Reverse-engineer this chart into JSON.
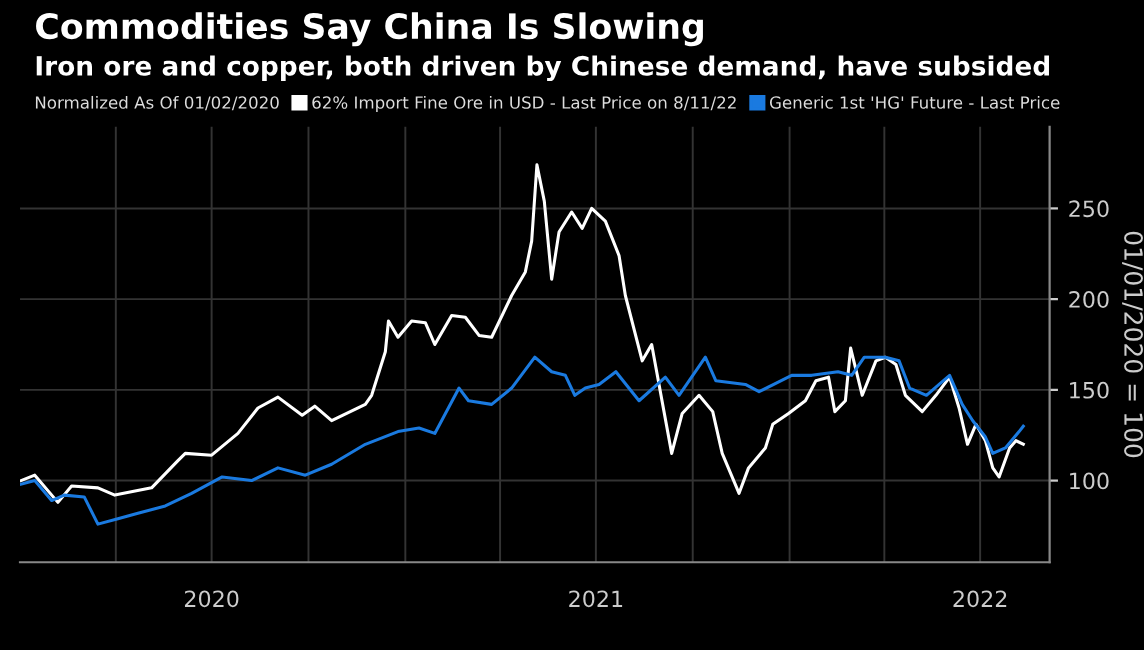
{
  "chart_data": {
    "type": "line",
    "title": "Commodities Say China Is Slowing",
    "subtitle": "Iron ore and copper, both driven by Chinese demand, have subsided",
    "legend_title": "Normalized As Of 01/02/2020",
    "ylabel": "01/01/2020 = 100",
    "series": [
      {
        "name": "62% Import Fine Ore in USD - Last Price on 8/11/22",
        "color": "#ffffff",
        "x": [
          "2020-01-02",
          "2020-01-15",
          "2020-02-06",
          "2020-02-19",
          "2020-03-15",
          "2020-03-31",
          "2020-05-05",
          "2020-05-30",
          "2020-06-06",
          "2020-07-01",
          "2020-07-26",
          "2020-08-14",
          "2020-09-02",
          "2020-09-25",
          "2020-10-07",
          "2020-10-23",
          "2020-11-24",
          "2020-11-30",
          "2020-12-13",
          "2020-12-16",
          "2020-12-25",
          "2021-01-07",
          "2021-01-20",
          "2021-01-29",
          "2021-02-14",
          "2021-02-27",
          "2021-03-12",
          "2021-03-24",
          "2021-04-12",
          "2021-04-25",
          "2021-05-01",
          "2021-05-06",
          "2021-05-13",
          "2021-05-20",
          "2021-05-27",
          "2021-06-08",
          "2021-06-18",
          "2021-06-27",
          "2021-07-10",
          "2021-07-23",
          "2021-07-29",
          "2021-08-14",
          "2021-08-23",
          "2021-09-11",
          "2021-09-21",
          "2021-10-07",
          "2021-10-20",
          "2021-10-29",
          "2021-11-14",
          "2021-11-23",
          "2021-12-09",
          "2021-12-16",
          "2021-12-31",
          "2022-01-16",
          "2022-01-26",
          "2022-02-07",
          "2022-02-13",
          "2022-02-23",
          "2022-02-28",
          "2022-03-11",
          "2022-03-24",
          "2022-04-02",
          "2022-04-12",
          "2022-04-21",
          "2022-05-07",
          "2022-05-20",
          "2022-06-02",
          "2022-06-11",
          "2022-06-19",
          "2022-06-27",
          "2022-07-06",
          "2022-07-13",
          "2022-07-19",
          "2022-07-29",
          "2022-08-04",
          "2022-08-11"
        ],
        "values": [
          100,
          103,
          88,
          97,
          96,
          92,
          96,
          111,
          115,
          114,
          126,
          140,
          146,
          136,
          141,
          133,
          142,
          147,
          171,
          188,
          179,
          188,
          187,
          175,
          191,
          190,
          180,
          179,
          202,
          215,
          232,
          274,
          254,
          211,
          237,
          248,
          239,
          250,
          243,
          224,
          202,
          166,
          175,
          115,
          137,
          147,
          138,
          115,
          93,
          107,
          118,
          131,
          137,
          144,
          155,
          157,
          138,
          144,
          173,
          147,
          166,
          168,
          164,
          147,
          138,
          147,
          157,
          140,
          120,
          131,
          122,
          107,
          102,
          118,
          122,
          120
        ]
      },
      {
        "name": "Generic 1st 'HG' Future - Last Price",
        "color": "#1a7ae0",
        "x": [
          "2020-01-02",
          "2020-01-15",
          "2020-01-31",
          "2020-02-12",
          "2020-03-02",
          "2020-03-15",
          "2020-04-03",
          "2020-04-22",
          "2020-05-18",
          "2020-06-12",
          "2020-07-11",
          "2020-08-08",
          "2020-09-02",
          "2020-09-28",
          "2020-10-23",
          "2020-11-24",
          "2020-12-25",
          "2021-01-14",
          "2021-01-29",
          "2021-02-21",
          "2021-03-02",
          "2021-03-24",
          "2021-04-12",
          "2021-05-04",
          "2021-05-20",
          "2021-06-02",
          "2021-06-11",
          "2021-06-21",
          "2021-07-04",
          "2021-07-20",
          "2021-08-11",
          "2021-09-05",
          "2021-09-18",
          "2021-10-13",
          "2021-10-23",
          "2021-11-20",
          "2021-12-03",
          "2022-01-03",
          "2022-01-22",
          "2022-02-16",
          "2022-03-01",
          "2022-03-13",
          "2022-04-02",
          "2022-04-15",
          "2022-04-25",
          "2022-05-11",
          "2022-05-23",
          "2022-06-02",
          "2022-06-14",
          "2022-06-24",
          "2022-07-06",
          "2022-07-13",
          "2022-07-25",
          "2022-08-07",
          "2022-08-11"
        ],
        "values": [
          98,
          100,
          89,
          92,
          91,
          76,
          79,
          82,
          86,
          93,
          102,
          100,
          107,
          103,
          109,
          120,
          127,
          129,
          126,
          151,
          144,
          142,
          151,
          168,
          160,
          158,
          147,
          151,
          153,
          160,
          144,
          157,
          147,
          168,
          155,
          153,
          149,
          158,
          158,
          160,
          158,
          168,
          168,
          166,
          151,
          147,
          153,
          158,
          142,
          133,
          124,
          115,
          118,
          127,
          130
        ]
      }
    ],
    "xlim": [
      "2020-01-01",
      "2022-09-05"
    ],
    "xticks": [
      {
        "value": "2020-04-01",
        "label": null
      },
      {
        "value": "2020-07-01",
        "label": "2020"
      },
      {
        "value": "2020-10-01",
        "label": null
      },
      {
        "value": "2021-01-01",
        "label": null
      },
      {
        "value": "2021-04-01",
        "label": null
      },
      {
        "value": "2021-07-01",
        "label": "2021"
      },
      {
        "value": "2021-10-01",
        "label": null
      },
      {
        "value": "2022-01-01",
        "label": null
      },
      {
        "value": "2022-04-01",
        "label": null
      },
      {
        "value": "2022-07-01",
        "label": "2022"
      }
    ],
    "ylim": [
      55,
      295
    ],
    "yticks": [
      100,
      150,
      200,
      250
    ],
    "grid": true,
    "legend": "top",
    "marker": "none",
    "line_style": "solid"
  }
}
